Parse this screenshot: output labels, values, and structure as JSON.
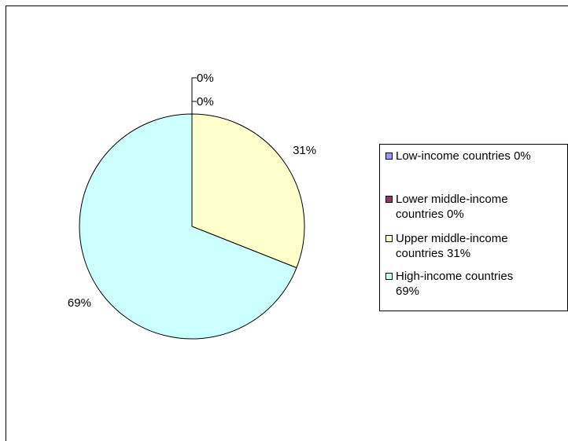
{
  "chart_data": {
    "type": "pie",
    "categories": [
      "Low-income countries",
      "Lower middle-income countries",
      "Upper middle-income countries",
      "High-income countries"
    ],
    "values": [
      0,
      0,
      31,
      69
    ],
    "data_labels": [
      "0%",
      "0%",
      "31%",
      "69%"
    ],
    "colors": [
      "#9999ff",
      "#993366",
      "#ffffcc",
      "#ccffff"
    ],
    "legend_position": "right",
    "legend": [
      {
        "text": "Low-income countries 0%",
        "color": "#9999ff"
      },
      {
        "text": "Lower middle-income\ncountries 0%",
        "color": "#993366"
      },
      {
        "text": "Upper middle-income\ncountries 31%",
        "color": "#ffffcc"
      },
      {
        "text": "High-income countries\n69%",
        "color": "#ccffff"
      }
    ]
  }
}
